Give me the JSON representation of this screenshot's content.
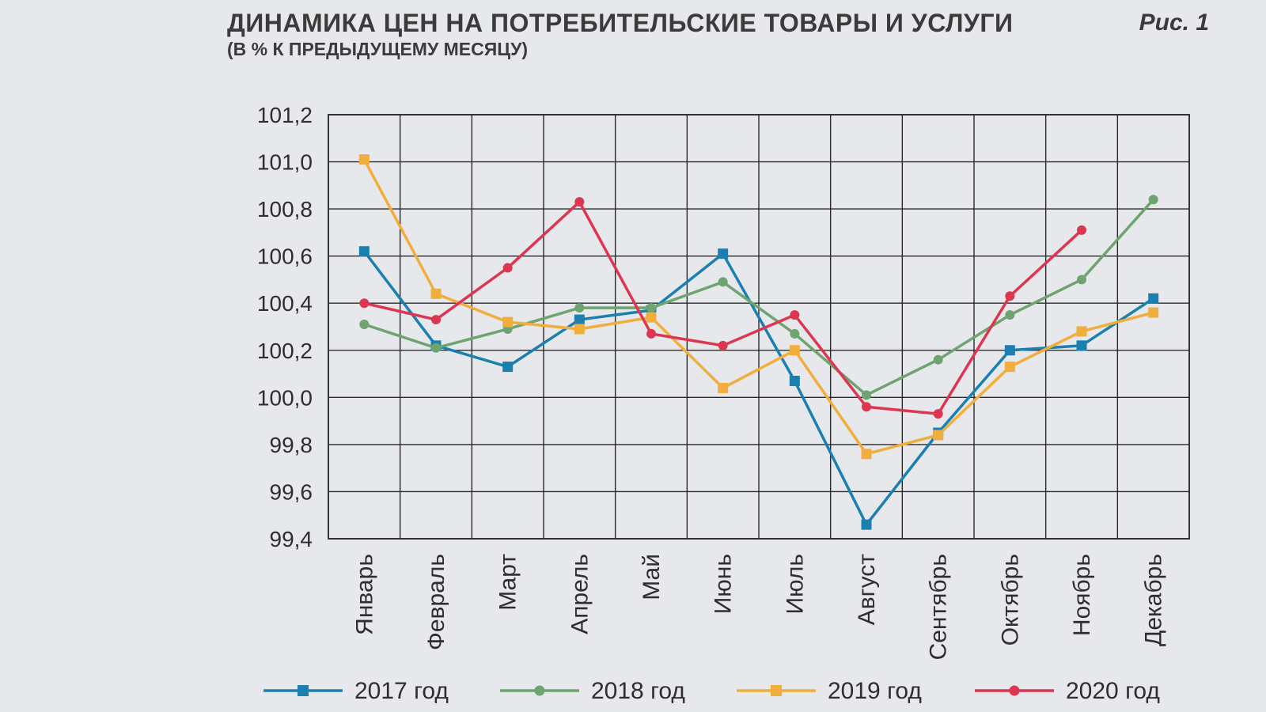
{
  "figure_label": "Рис. 1",
  "chart_data": {
    "type": "line",
    "title": "ДИНАМИКА ЦЕН НА ПОТРЕБИТЕЛЬСКИЕ ТОВАРЫ И УСЛУГИ",
    "subtitle": "(В % К ПРЕДЫДУЩЕМУ МЕСЯЦУ)",
    "xlabel": "",
    "ylabel": "",
    "ylim": [
      99.4,
      101.2
    ],
    "yticks": [
      "101,2",
      "101,0",
      "100,8",
      "100,6",
      "100,4",
      "100,2",
      "100,0",
      "99,8",
      "99,6",
      "99,4"
    ],
    "ytick_values": [
      101.2,
      101.0,
      100.8,
      100.6,
      100.4,
      100.2,
      100.0,
      99.8,
      99.6,
      99.4
    ],
    "grid": true,
    "legend_position": "bottom",
    "categories": [
      "Январь",
      "Февраль",
      "Март",
      "Апрель",
      "Май",
      "Июнь",
      "Июль",
      "Август",
      "Сентябрь",
      "Октябрь",
      "Ноябрь",
      "Декабрь"
    ],
    "series": [
      {
        "name": "2017 год",
        "color": "#1b7fb0",
        "marker": "square",
        "values": [
          100.62,
          100.22,
          100.13,
          100.33,
          100.37,
          100.61,
          100.07,
          99.46,
          99.85,
          100.2,
          100.22,
          100.42
        ]
      },
      {
        "name": "2018 год",
        "color": "#6ea46f",
        "marker": "circle",
        "values": [
          100.31,
          100.21,
          100.29,
          100.38,
          100.38,
          100.49,
          100.27,
          100.01,
          100.16,
          100.35,
          100.5,
          100.84
        ]
      },
      {
        "name": "2019 год",
        "color": "#f1ae3d",
        "marker": "square",
        "values": [
          101.01,
          100.44,
          100.32,
          100.29,
          100.34,
          100.04,
          100.2,
          99.76,
          99.84,
          100.13,
          100.28,
          100.36
        ]
      },
      {
        "name": "2020 год",
        "color": "#dc3650",
        "marker": "circle",
        "values": [
          100.4,
          100.33,
          100.55,
          100.83,
          100.27,
          100.22,
          100.35,
          99.96,
          99.93,
          100.43,
          100.71,
          null
        ]
      }
    ]
  }
}
